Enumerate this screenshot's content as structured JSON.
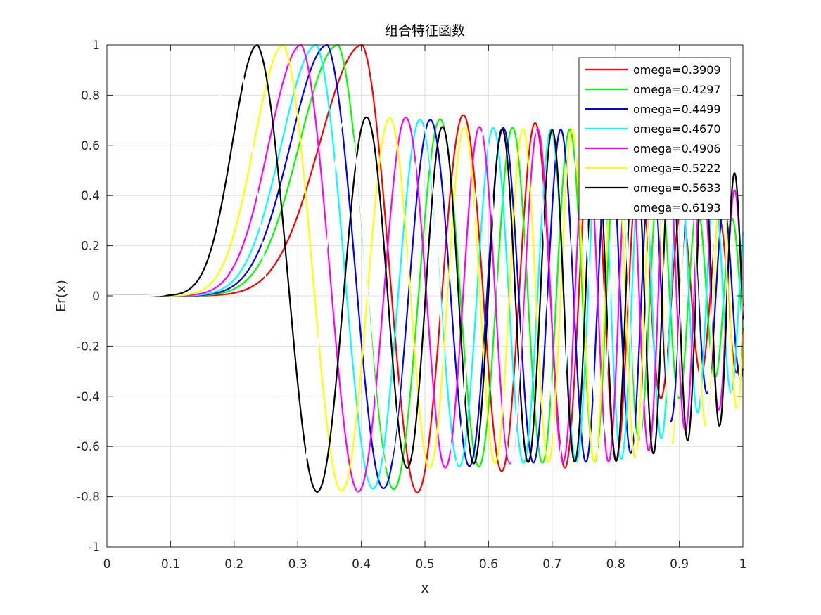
{
  "chart_data": {
    "type": "line",
    "title": "组合特征函数",
    "xlabel": "x",
    "ylabel": "Er(x)",
    "xlim": [
      0,
      1
    ],
    "ylim": [
      -1,
      1
    ],
    "grid": true,
    "legend_position": "top-right",
    "x_ticks": [
      "0",
      "0.1",
      "0.2",
      "0.3",
      "0.4",
      "0.5",
      "0.6",
      "0.7",
      "0.8",
      "0.9",
      "1"
    ],
    "y_ticks": [
      "-1",
      "-0.8",
      "-0.6",
      "-0.4",
      "-0.2",
      "0",
      "0.2",
      "0.4",
      "0.6",
      "0.8",
      "1"
    ],
    "series": [
      {
        "name": "omega=0.3909",
        "color": "#ff0000",
        "peak_x": 0.402,
        "first_min_x": 0.466,
        "first_min_y": -0.8,
        "freq": 16.5,
        "damp_amp": 0.68
      },
      {
        "name": "omega=0.4297",
        "color": "#00ff00",
        "peak_x": 0.364,
        "first_min_x": 0.429,
        "first_min_y": -0.8,
        "freq": 16.3,
        "damp_amp": 0.66
      },
      {
        "name": "omega=0.4499",
        "color": "#0000ff",
        "peak_x": 0.347,
        "first_min_x": 0.411,
        "first_min_y": -0.8,
        "freq": 16.1,
        "damp_amp": 0.66
      },
      {
        "name": "omega=0.4670",
        "color": "#00ffff",
        "peak_x": 0.33,
        "first_min_x": 0.395,
        "first_min_y": -0.8,
        "freq": 16.0,
        "damp_amp": 0.66
      },
      {
        "name": "omega=0.4906",
        "color": "#ff00ff",
        "peak_x": 0.306,
        "first_min_x": 0.378,
        "first_min_y": -0.8,
        "freq": 15.8,
        "damp_amp": 0.66
      },
      {
        "name": "omega=0.5222",
        "color": "#ffff00",
        "peak_x": 0.278,
        "first_min_x": 0.35,
        "first_min_y": -0.8,
        "freq": 15.5,
        "damp_amp": 0.66
      },
      {
        "name": "omega=0.5633",
        "color": "#000000",
        "peak_x": 0.237,
        "first_min_x": 0.313,
        "first_min_y": -0.79,
        "freq": 15.0,
        "damp_amp": 0.66
      },
      {
        "name": "omega=0.6193",
        "color": "#ffffff",
        "peak_x": 0.2,
        "first_min_x": 0.275,
        "first_min_y": -0.8,
        "freq": 14.5,
        "damp_amp": 0.66
      }
    ]
  }
}
